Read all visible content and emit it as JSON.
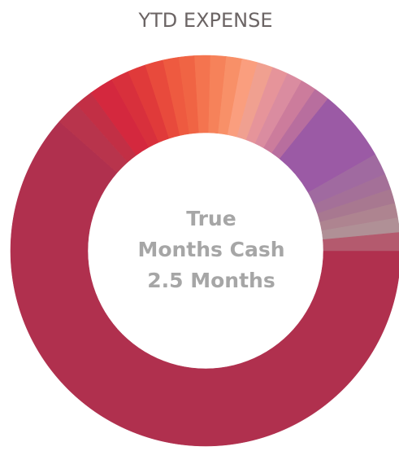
{
  "chart_data": {
    "type": "donut",
    "title": "YTD EXPENSE",
    "center_text": [
      "True",
      "Months Cash",
      "2.5 Months"
    ],
    "values": [
      61.5,
      2.0,
      1.5,
      2.0,
      1.5,
      1.5,
      1.5,
      1.3,
      1.3,
      1.3,
      1.3,
      1.3,
      1.3,
      1.3,
      1.3,
      1.3,
      1.3,
      1.3,
      6.0,
      1.8,
      1.3,
      1.2,
      1.2,
      1.2,
      1.5
    ],
    "colors": [
      "#b0304e",
      "#b8344c",
      "#c22f45",
      "#d4283e",
      "#d8303c",
      "#e03a3a",
      "#e84a3c",
      "#ee5a40",
      "#f06444",
      "#f4744f",
      "#f6825a",
      "#f89068",
      "#fa9e7e",
      "#f0a090",
      "#e6949a",
      "#da8ca0",
      "#cc7c9c",
      "#b86e9e",
      "#9b5aa5",
      "#a06aa0",
      "#a47098",
      "#a87890",
      "#ae8490",
      "#b09096",
      "#b45a6e"
    ]
  }
}
